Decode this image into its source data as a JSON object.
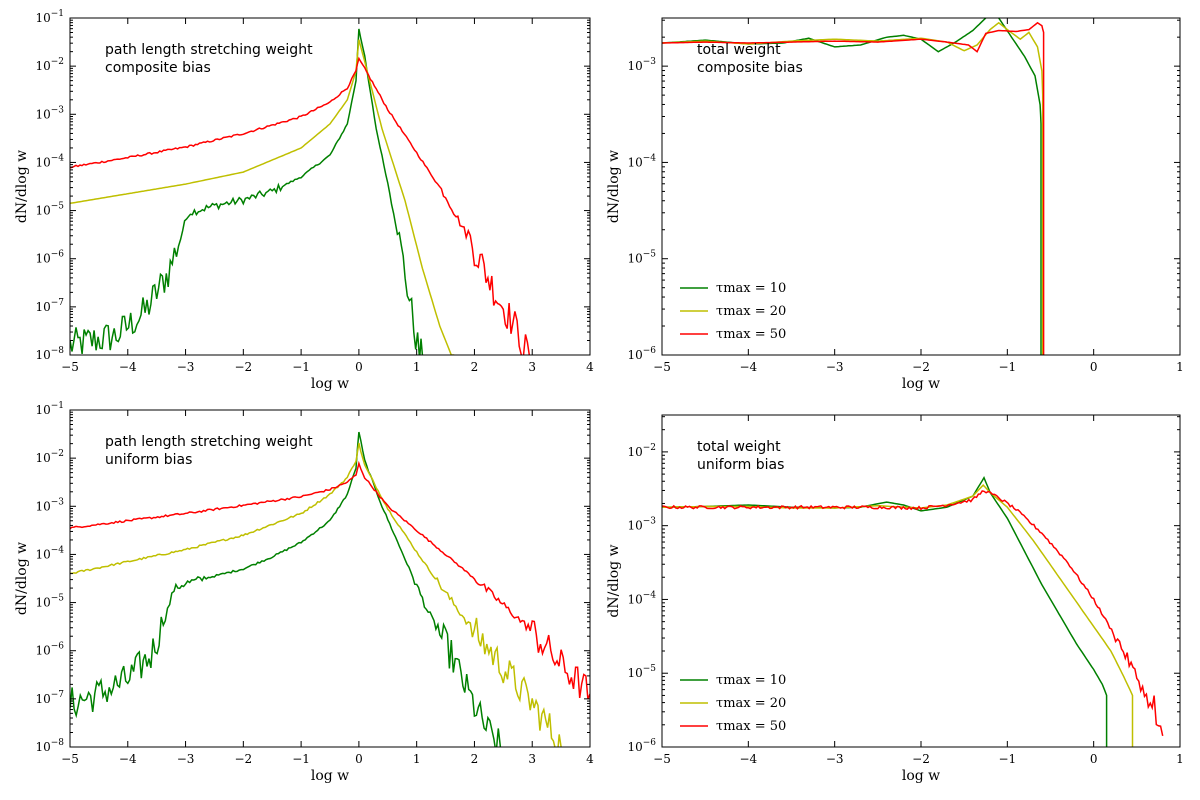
{
  "chart_data": [
    {
      "type": "line",
      "id": "top-left",
      "annotation": [
        "path length stretching weight",
        "composite bias"
      ],
      "xlabel": "log w",
      "ylabel": "dN/dlog w",
      "xlim": [
        -5,
        4
      ],
      "xticks": [
        -5,
        -4,
        -3,
        -2,
        -1,
        0,
        1,
        2,
        3,
        4
      ],
      "ylim_log10": [
        -8,
        -1
      ],
      "yticks_log10": [
        -8,
        -7,
        -6,
        -5,
        -4,
        -3,
        -2,
        -1
      ],
      "legend": [],
      "series": [
        {
          "name": "τmax = 10",
          "color": "#008000",
          "noisy": true,
          "x": [
            -5,
            -4.2,
            -3.7,
            -3.3,
            -3.05,
            -2.95,
            -2.5,
            -2,
            -1.5,
            -1,
            -0.5,
            -0.2,
            -0.05,
            0,
            0.1,
            0.3,
            0.6,
            0.8,
            0.95,
            1.05,
            1.1
          ],
          "y": [
            -7.8,
            -7.6,
            -7.1,
            -6.3,
            -5.4,
            -5.05,
            -4.9,
            -4.78,
            -4.6,
            -4.3,
            -3.85,
            -3.2,
            -2.3,
            -1.22,
            -1.8,
            -3.3,
            -5.0,
            -6.3,
            -7.4,
            -8,
            -8
          ]
        },
        {
          "name": "τmax = 20",
          "color": "#bfbf00",
          "x": [
            -5,
            -4,
            -3,
            -2,
            -1,
            -0.5,
            -0.2,
            -0.05,
            0,
            0.1,
            0.4,
            0.8,
            1.1,
            1.4,
            1.6,
            1.65
          ],
          "y": [
            -4.85,
            -4.65,
            -4.45,
            -4.2,
            -3.7,
            -3.2,
            -2.7,
            -2.1,
            -1.45,
            -1.9,
            -3.3,
            -4.8,
            -6.2,
            -7.4,
            -8,
            -8
          ]
        },
        {
          "name": "τmax = 50",
          "color": "#ff0000",
          "noisy": true,
          "x": [
            -5,
            -4,
            -3,
            -2,
            -1,
            -0.5,
            -0.2,
            -0.05,
            0,
            0.1,
            0.5,
            1,
            1.5,
            2,
            2.4,
            2.7,
            2.85,
            2.95
          ],
          "y": [
            -4.1,
            -3.9,
            -3.68,
            -3.4,
            -3.05,
            -2.75,
            -2.45,
            -2.1,
            -1.85,
            -2.05,
            -2.9,
            -3.8,
            -4.7,
            -5.8,
            -6.8,
            -7.4,
            -7.8,
            -8
          ]
        }
      ]
    },
    {
      "type": "line",
      "id": "top-right",
      "annotation": [
        "total weight",
        "composite bias"
      ],
      "xlabel": "log w",
      "ylabel": "dN/dlog w",
      "xlim": [
        -5,
        1
      ],
      "xticks": [
        -5,
        -4,
        -3,
        -2,
        -1,
        0,
        1
      ],
      "ylim_log10": [
        -6,
        -2.5
      ],
      "yticks_log10": [
        -6,
        -5,
        -4,
        -3,
        -2
      ],
      "legend": [
        "τmax = 10",
        "τmax = 20",
        "τmax = 50"
      ],
      "series": [
        {
          "name": "τmax = 10",
          "color": "#008000",
          "x": [
            -5,
            -4.5,
            -4,
            -3.6,
            -3.3,
            -3,
            -2.7,
            -2.4,
            -2.2,
            -2.0,
            -1.8,
            -1.6,
            -1.4,
            -1.25,
            -1.17,
            -1.1,
            -0.95,
            -0.8,
            -0.68,
            -0.62,
            -0.61,
            -0.61
          ],
          "y": [
            -2.76,
            -2.73,
            -2.77,
            -2.76,
            -2.71,
            -2.8,
            -2.78,
            -2.7,
            -2.68,
            -2.72,
            -2.85,
            -2.75,
            -2.63,
            -2.5,
            -2.4,
            -2.5,
            -2.7,
            -2.9,
            -3.1,
            -3.4,
            -3.6,
            -6
          ]
        },
        {
          "name": "τmax = 20",
          "color": "#bfbf00",
          "x": [
            -5,
            -4.5,
            -4,
            -3.5,
            -3,
            -2.5,
            -2.0,
            -1.7,
            -1.5,
            -1.35,
            -1.2,
            -1.1,
            -1.0,
            -0.85,
            -0.75,
            -0.65,
            -0.6,
            -0.59,
            -0.59
          ],
          "y": [
            -2.76,
            -2.74,
            -2.77,
            -2.74,
            -2.72,
            -2.74,
            -2.71,
            -2.75,
            -2.84,
            -2.78,
            -2.62,
            -2.55,
            -2.62,
            -2.72,
            -2.65,
            -2.8,
            -3.05,
            -3.3,
            -6
          ]
        },
        {
          "name": "τmax = 50",
          "color": "#ff0000",
          "x": [
            -5,
            -4.5,
            -4,
            -3.5,
            -3,
            -2.5,
            -2.0,
            -1.7,
            -1.45,
            -1.35,
            -1.25,
            -1.1,
            -0.9,
            -0.75,
            -0.65,
            -0.6,
            -0.58,
            -0.58
          ],
          "y": [
            -2.76,
            -2.75,
            -2.76,
            -2.75,
            -2.74,
            -2.75,
            -2.72,
            -2.75,
            -2.78,
            -2.85,
            -2.66,
            -2.63,
            -2.64,
            -2.62,
            -2.55,
            -2.58,
            -2.65,
            -6
          ]
        }
      ]
    },
    {
      "type": "line",
      "id": "bottom-left",
      "annotation": [
        "path length stretching weight",
        "uniform bias"
      ],
      "xlabel": "log w",
      "ylabel": "dN/dlog w",
      "xlim": [
        -5,
        4
      ],
      "xticks": [
        -5,
        -4,
        -3,
        -2,
        -1,
        0,
        1,
        2,
        3,
        4
      ],
      "ylim_log10": [
        -8,
        -1
      ],
      "yticks_log10": [
        -8,
        -7,
        -6,
        -5,
        -4,
        -3,
        -2,
        -1
      ],
      "legend": [],
      "series": [
        {
          "name": "τmax = 10",
          "color": "#008000",
          "noisy": true,
          "x": [
            -5,
            -4.5,
            -4,
            -3.6,
            -3.35,
            -3.2,
            -3,
            -2.5,
            -2,
            -1.5,
            -1,
            -0.5,
            -0.2,
            -0.05,
            0,
            0.1,
            0.4,
            0.8,
            1.2,
            1.6,
            1.9,
            2.1,
            2.3,
            2.45
          ],
          "y": [
            -7.1,
            -6.9,
            -6.6,
            -6.1,
            -5.3,
            -4.72,
            -4.6,
            -4.45,
            -4.3,
            -4.05,
            -3.75,
            -3.3,
            -2.75,
            -2.2,
            -1.45,
            -2.05,
            -3.0,
            -4.1,
            -5.2,
            -6.1,
            -6.9,
            -7.4,
            -7.8,
            -8
          ]
        },
        {
          "name": "τmax = 20",
          "color": "#bfbf00",
          "noisy": true,
          "x": [
            -5,
            -4,
            -3,
            -2,
            -1,
            -0.5,
            -0.2,
            -0.05,
            0,
            0.1,
            0.5,
            1,
            1.5,
            2,
            2.5,
            3,
            3.3,
            3.5
          ],
          "y": [
            -4.4,
            -4.15,
            -3.9,
            -3.6,
            -3.15,
            -2.75,
            -2.4,
            -2.05,
            -1.7,
            -2.15,
            -3.05,
            -3.95,
            -4.8,
            -5.6,
            -6.35,
            -7.1,
            -7.6,
            -8
          ]
        },
        {
          "name": "τmax = 50",
          "color": "#ff0000",
          "noisy": true,
          "x": [
            -5,
            -4,
            -3,
            -2,
            -1,
            -0.5,
            -0.2,
            -0.05,
            0,
            0.1,
            0.5,
            1,
            2,
            3,
            3.5,
            4
          ],
          "y": [
            -3.45,
            -3.3,
            -3.15,
            -2.98,
            -2.8,
            -2.65,
            -2.5,
            -2.35,
            -2.12,
            -2.4,
            -3.0,
            -3.5,
            -4.5,
            -5.6,
            -6.3,
            -6.9
          ]
        }
      ]
    },
    {
      "type": "line",
      "id": "bottom-right",
      "annotation": [
        "total weight",
        "uniform bias"
      ],
      "xlabel": "log w",
      "ylabel": "dN/dlog w",
      "xlim": [
        -5,
        1
      ],
      "xticks": [
        -5,
        -4,
        -3,
        -2,
        -1,
        0,
        1
      ],
      "ylim_log10": [
        -6,
        -1.5
      ],
      "yticks_log10": [
        -6,
        -5,
        -4,
        -3,
        -2
      ],
      "legend": [
        "τmax = 10",
        "τmax = 20",
        "τmax = 50"
      ],
      "series": [
        {
          "name": "τmax = 10",
          "color": "#008000",
          "x": [
            -5,
            -4.5,
            -4,
            -3.5,
            -3,
            -2.7,
            -2.4,
            -2.2,
            -2.0,
            -1.7,
            -1.4,
            -1.27,
            -1.2,
            -1.0,
            -0.8,
            -0.6,
            -0.4,
            -0.2,
            0,
            0.1,
            0.15,
            0.15
          ],
          "y": [
            -2.75,
            -2.74,
            -2.72,
            -2.75,
            -2.76,
            -2.75,
            -2.68,
            -2.72,
            -2.8,
            -2.75,
            -2.6,
            -2.35,
            -2.55,
            -2.9,
            -3.35,
            -3.8,
            -4.2,
            -4.6,
            -4.95,
            -5.15,
            -5.3,
            -6
          ]
        },
        {
          "name": "τmax = 20",
          "color": "#bfbf00",
          "x": [
            -5,
            -4.5,
            -4,
            -3.5,
            -3,
            -2.5,
            -2.0,
            -1.7,
            -1.4,
            -1.28,
            -1.2,
            -1.0,
            -0.7,
            -0.4,
            -0.1,
            0.2,
            0.35,
            0.45,
            0.45
          ],
          "y": [
            -2.75,
            -2.74,
            -2.74,
            -2.76,
            -2.76,
            -2.73,
            -2.76,
            -2.72,
            -2.6,
            -2.45,
            -2.55,
            -2.75,
            -3.2,
            -3.7,
            -4.2,
            -4.7,
            -5.05,
            -5.3,
            -6
          ]
        },
        {
          "name": "τmax = 50",
          "color": "#ff0000",
          "noisy": true,
          "x": [
            -5,
            -4.5,
            -4,
            -3.5,
            -3,
            -2.5,
            -2.0,
            -1.7,
            -1.4,
            -1.27,
            -1.1,
            -0.9,
            -0.6,
            -0.3,
            0,
            0.3,
            0.5,
            0.7,
            0.8
          ],
          "y": [
            -2.75,
            -2.75,
            -2.75,
            -2.75,
            -2.75,
            -2.75,
            -2.76,
            -2.72,
            -2.65,
            -2.52,
            -2.62,
            -2.78,
            -3.1,
            -3.5,
            -4.0,
            -4.6,
            -5.05,
            -5.55,
            -5.85
          ]
        }
      ]
    }
  ]
}
